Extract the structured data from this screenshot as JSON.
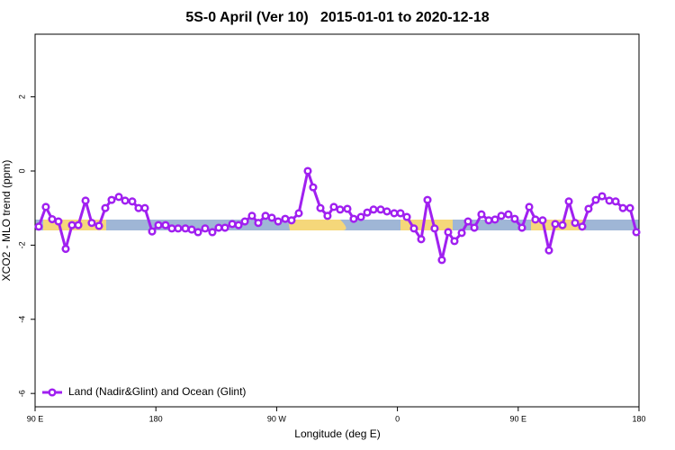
{
  "chart_data": {
    "type": "line",
    "title": "5S-0 April (Ver 10)   2015-01-01 to 2020-12-18",
    "x_label": "Longitude (deg E)",
    "y_label": "XCO2 - MLO trend (ppm)",
    "xlim": [
      90,
      540
    ],
    "ylim": [
      -6.36,
      3.69
    ],
    "xticks": [
      {
        "value": 90,
        "label": "90 E"
      },
      180,
      {
        "value": 270,
        "label": "90 W"
      },
      {
        "value": 360,
        "label": "0"
      },
      {
        "value": 450,
        "label": "90 E"
      },
      {
        "value": 540,
        "label": "180"
      }
    ],
    "yticks": [
      2,
      0,
      -2,
      -4,
      -6
    ],
    "legend": "bottom-left",
    "x": [
      92.7,
      98.0,
      102.7,
      107.4,
      112.8,
      117.5,
      122.2,
      127.6,
      132.2,
      137.6,
      142.3,
      147.0,
      152.4,
      157.1,
      162.4,
      167.1,
      171.8,
      177.2,
      181.9,
      187.2,
      191.9,
      196.6,
      202.0,
      206.7,
      211.4,
      216.7,
      222.1,
      226.8,
      231.5,
      236.9,
      241.6,
      246.3,
      251.6,
      256.3,
      261.7,
      266.4,
      271.1,
      276.4,
      281.1,
      286.5,
      293.2,
      297.2,
      302.6,
      307.9,
      312.6,
      317.3,
      322.7,
      327.4,
      332.8,
      337.5,
      342.2,
      347.5,
      352.2,
      357.6,
      362.3,
      367.0,
      372.3,
      377.7,
      382.4,
      387.7,
      393.1,
      397.8,
      402.5,
      407.9,
      412.6,
      417.3,
      422.6,
      428.0,
      432.7,
      437.4,
      442.7,
      447.4,
      452.8,
      458.2,
      462.8,
      468.2,
      472.9,
      477.6,
      483.0,
      487.7,
      492.4,
      497.7,
      502.4,
      507.8,
      512.5,
      517.9,
      522.6,
      528.0,
      533.3,
      538.0
    ],
    "series": [
      {
        "name": "Land (Nadir&Glint) and Ocean (Glint)",
        "color": "#a020f0",
        "values": [
          -1.5,
          -0.97,
          -1.3,
          -1.36,
          -2.1,
          -1.46,
          -1.46,
          -0.8,
          -1.4,
          -1.48,
          -1.0,
          -0.78,
          -0.7,
          -0.8,
          -0.82,
          -1.0,
          -1.0,
          -1.63,
          -1.46,
          -1.46,
          -1.55,
          -1.55,
          -1.55,
          -1.58,
          -1.65,
          -1.55,
          -1.65,
          -1.53,
          -1.53,
          -1.43,
          -1.46,
          -1.36,
          -1.21,
          -1.4,
          -1.21,
          -1.26,
          -1.36,
          -1.29,
          -1.33,
          -1.14,
          0,
          -0.44,
          -1.0,
          -1.21,
          -0.97,
          -1.04,
          -1.02,
          -1.29,
          -1.24,
          -1.12,
          -1.04,
          -1.04,
          -1.09,
          -1.14,
          -1.14,
          -1.24,
          -1.55,
          -1.84,
          -0.78,
          -1.55,
          -2.4,
          -1.65,
          -1.89,
          -1.67,
          -1.36,
          -1.53,
          -1.17,
          -1.33,
          -1.31,
          -1.21,
          -1.17,
          -1.29,
          -1.53,
          -0.97,
          -1.31,
          -1.33,
          -2.14,
          -1.43,
          -1.46,
          -0.82,
          -1.4,
          -1.5,
          -1.02,
          -0.78,
          -0.68,
          -0.8,
          -0.82,
          -1.0,
          -1.0,
          -1.65
        ]
      }
    ]
  }
}
